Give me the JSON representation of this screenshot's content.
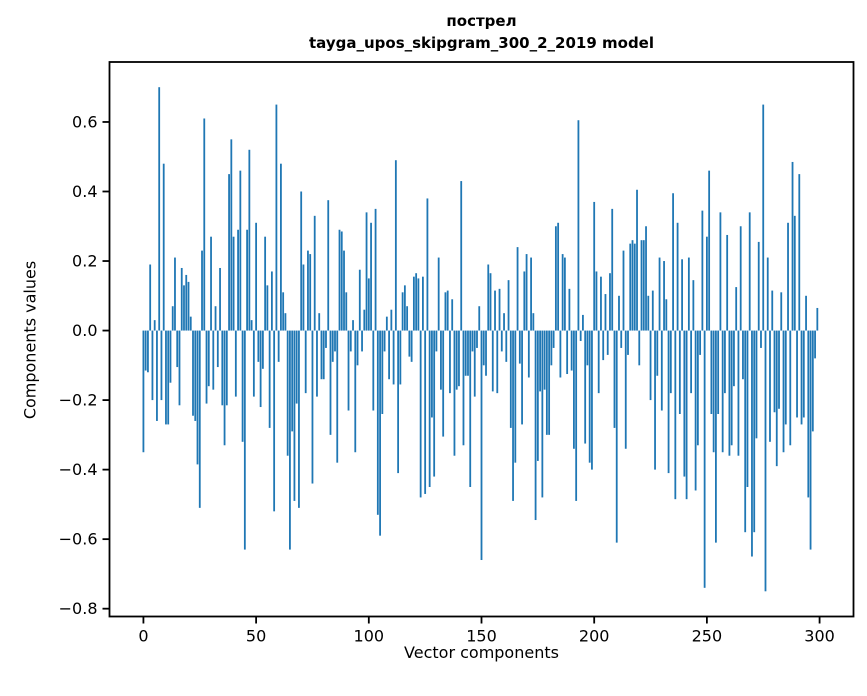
{
  "chart_data": {
    "type": "bar",
    "title_line1": "пострел",
    "title_line2": "tayga_upos_skipgram_300_2_2019 model",
    "xlabel": "Vector components",
    "ylabel": "Components values",
    "legend": "none",
    "grid": false,
    "bar_color": "#1f77b4",
    "axis_color": "#000000",
    "background_color": "#ffffff",
    "x_start": 0,
    "x_count": 300,
    "xlim": [
      -15.05,
      315.05
    ],
    "ylim": [
      -0.8225,
      0.7725
    ],
    "xticks": [
      0,
      50,
      100,
      150,
      200,
      250,
      300
    ],
    "xtick_labels": [
      "0",
      "50",
      "100",
      "150",
      "200",
      "250",
      "300"
    ],
    "yticks": [
      0.6,
      0.4,
      0.2,
      0.0,
      -0.2,
      -0.4,
      -0.6,
      -0.8
    ],
    "ytick_labels": [
      "0.6",
      "0.4",
      "0.2",
      "0.0",
      "−0.2",
      "−0.4",
      "−0.6",
      "−0.8"
    ],
    "values": [
      -0.35,
      -0.115,
      -0.12,
      0.19,
      -0.2,
      0.03,
      -0.26,
      0.7,
      -0.2,
      0.48,
      -0.27,
      -0.27,
      -0.15,
      0.07,
      0.21,
      -0.105,
      -0.215,
      0.18,
      0.13,
      0.16,
      0.14,
      0.04,
      -0.245,
      -0.26,
      -0.385,
      -0.51,
      0.23,
      0.61,
      -0.21,
      -0.16,
      0.27,
      -0.17,
      0.07,
      -0.105,
      0.18,
      -0.215,
      -0.33,
      -0.215,
      0.45,
      0.55,
      0.27,
      -0.19,
      0.29,
      0.46,
      -0.32,
      -0.63,
      0.29,
      0.52,
      0.03,
      -0.19,
      0.31,
      -0.09,
      -0.22,
      -0.11,
      0.27,
      0.13,
      -0.28,
      0.17,
      -0.52,
      0.65,
      -0.09,
      0.48,
      0.11,
      0.05,
      -0.36,
      -0.63,
      -0.29,
      -0.49,
      -0.21,
      -0.51,
      0.4,
      0.19,
      -0.18,
      0.23,
      0.22,
      -0.44,
      0.33,
      -0.19,
      0.05,
      -0.14,
      -0.14,
      -0.05,
      0.375,
      -0.3,
      -0.09,
      -0.06,
      -0.38,
      0.29,
      0.285,
      0.23,
      0.11,
      -0.23,
      -0.06,
      0.03,
      -0.35,
      -0.1,
      0.175,
      -0.06,
      0.06,
      0.34,
      0.15,
      0.31,
      -0.23,
      0.35,
      -0.53,
      -0.59,
      -0.24,
      -0.06,
      0.04,
      -0.14,
      0.06,
      -0.155,
      0.49,
      -0.41,
      -0.155,
      0.11,
      0.13,
      0.07,
      -0.075,
      -0.09,
      0.155,
      0.165,
      0.15,
      -0.48,
      0.155,
      -0.47,
      0.38,
      -0.45,
      -0.25,
      -0.42,
      -0.06,
      0.21,
      -0.17,
      -0.305,
      0.11,
      0.115,
      -0.18,
      0.09,
      -0.36,
      -0.17,
      -0.16,
      0.43,
      -0.33,
      -0.13,
      -0.13,
      -0.45,
      -0.06,
      -0.19,
      -0.05,
      0.07,
      -0.66,
      -0.1,
      -0.13,
      0.19,
      0.165,
      -0.175,
      0.115,
      -0.18,
      0.12,
      -0.06,
      0.05,
      -0.09,
      0.145,
      -0.28,
      -0.49,
      -0.38,
      0.24,
      -0.095,
      -0.27,
      0.17,
      0.22,
      -0.135,
      0.21,
      0.05,
      -0.545,
      -0.375,
      -0.175,
      -0.48,
      -0.17,
      -0.3,
      -0.3,
      -0.1,
      -0.05,
      0.3,
      0.31,
      -0.135,
      0.22,
      0.21,
      -0.125,
      0.12,
      -0.115,
      -0.34,
      -0.49,
      0.605,
      -0.03,
      0.045,
      -0.325,
      -0.1,
      -0.38,
      -0.4,
      0.37,
      0.17,
      -0.18,
      0.155,
      -0.085,
      0.105,
      -0.07,
      0.165,
      0.35,
      -0.28,
      -0.61,
      0.1,
      -0.05,
      0.23,
      -0.34,
      -0.07,
      0.25,
      0.26,
      0.25,
      0.405,
      -0.1,
      0.26,
      0.26,
      0.3,
      0.1,
      -0.2,
      0.115,
      -0.4,
      -0.13,
      0.21,
      -0.23,
      0.2,
      0.09,
      -0.41,
      -0.18,
      0.395,
      -0.485,
      0.31,
      -0.24,
      0.205,
      -0.42,
      -0.485,
      0.21,
      -0.18,
      0.145,
      -0.46,
      -0.33,
      -0.07,
      0.345,
      -0.74,
      0.27,
      0.46,
      -0.24,
      -0.35,
      -0.61,
      -0.24,
      0.34,
      -0.35,
      -0.18,
      0.275,
      -0.36,
      -0.33,
      -0.16,
      0.125,
      -0.36,
      0.3,
      -0.14,
      -0.58,
      -0.45,
      0.34,
      -0.65,
      -0.58,
      -0.31,
      0.255,
      -0.05,
      0.65,
      -0.75,
      0.21,
      -0.32,
      0.115,
      -0.235,
      -0.39,
      -0.225,
      0.11,
      -0.35,
      -0.27,
      0.31,
      -0.33,
      0.485,
      0.33,
      -0.25,
      0.45,
      -0.27,
      -0.25,
      0.1,
      -0.48,
      -0.63,
      -0.29,
      -0.08,
      0.065
    ]
  }
}
